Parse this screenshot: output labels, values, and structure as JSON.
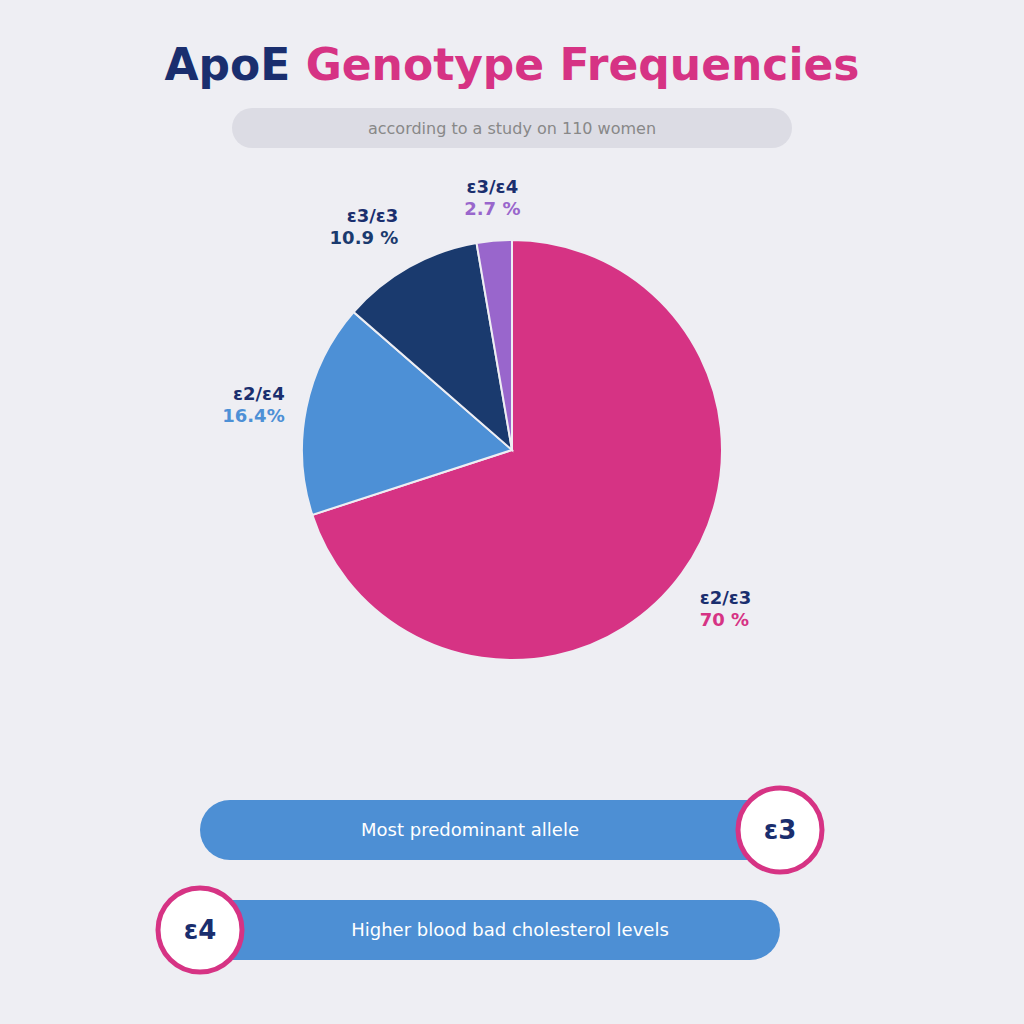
{
  "chart_data": {
    "type": "pie",
    "title": "ApoE Genotype Frequencies",
    "subtitle": "according to a study on 110 women",
    "categories": [
      "ε2/ε3",
      "ε2/ε4",
      "ε3/ε3",
      "ε3/ε4"
    ],
    "values": [
      70.0,
      16.4,
      10.9,
      2.7
    ],
    "value_labels": [
      "70 %",
      "16.4%",
      "10.9 %",
      "2.7 %"
    ],
    "colors": [
      "#d63384",
      "#4d90d6",
      "#1a3a6e",
      "#9966cc"
    ],
    "data_labels": true,
    "annotations": [
      {
        "label": "ε3",
        "text": "Most predominant allele"
      },
      {
        "label": "ε4",
        "text": "Higher blood bad cholesterol levels"
      }
    ]
  }
}
